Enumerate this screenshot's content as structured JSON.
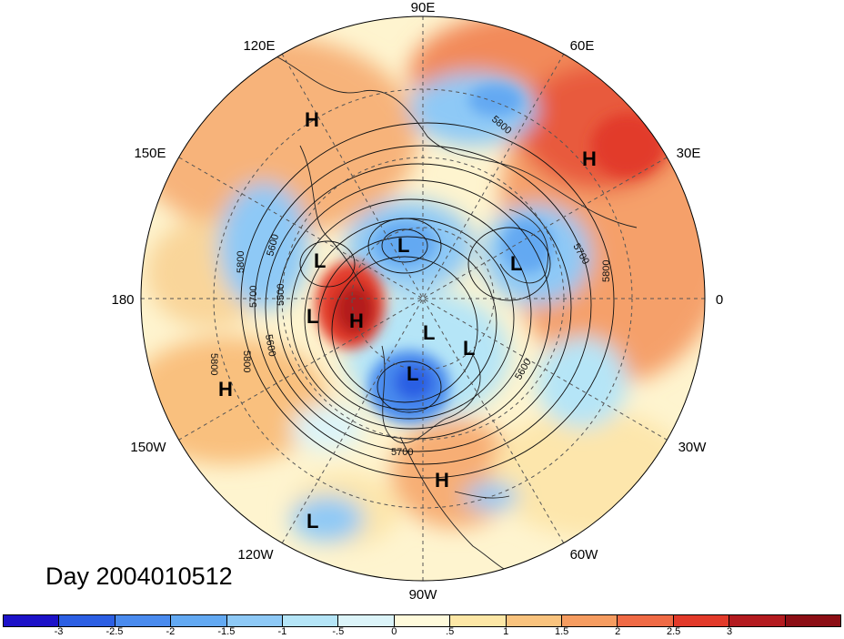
{
  "title": "Day 2004010512",
  "longitude_labels": {
    "lon_90e": "90E",
    "lon_120e": "120E",
    "lon_60e": "60E",
    "lon_150e": "150E",
    "lon_30e": "30E",
    "lon_180": "180",
    "lon_0": "0",
    "lon_150w": "150W",
    "lon_30w": "30W",
    "lon_120w": "120W",
    "lon_60w": "60W",
    "lon_90w": "90W"
  },
  "contour_labels": [
    "5800",
    "5800",
    "5600",
    "5800",
    "5700",
    "5500",
    "5800",
    "5600",
    "5700",
    "5600",
    "5700",
    "5800"
  ],
  "pressure_centers": [
    "H",
    "H",
    "L",
    "L",
    "L",
    "L",
    "H",
    "L",
    "L",
    "L",
    "H",
    "H",
    "L"
  ],
  "colorbar": {
    "colors": [
      "#1d12c8",
      "#2c5fe3",
      "#4a8bee",
      "#63a9f2",
      "#8ec9f6",
      "#b5e5f7",
      "#dcf4f9",
      "#fffadb",
      "#fde7a6",
      "#f9c37e",
      "#f59c60",
      "#ef6a45",
      "#e23a2a",
      "#b31b1f",
      "#8c0e15"
    ],
    "tick_labels": [
      "-3",
      "-2.5",
      "-2",
      "-1.5",
      "-1",
      "-.5",
      "0",
      ".5",
      "1",
      "1.5",
      "2",
      "2.5",
      "3"
    ]
  }
}
